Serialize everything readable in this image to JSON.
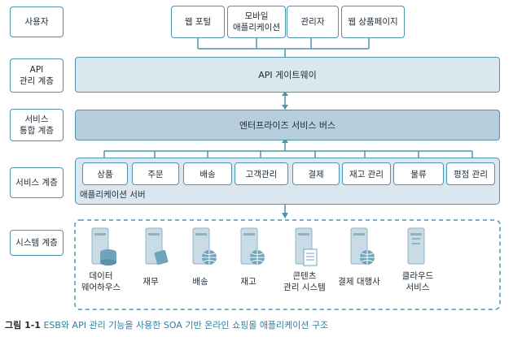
{
  "layers": {
    "user": "사용자",
    "api": "API\n관리 계층",
    "integration": "서비스\n통합 계층",
    "service": "서비스 계층",
    "system": "시스템 계층"
  },
  "clients": [
    "웹 포털",
    "모바일\n애플리케이션",
    "관리자",
    "웹 상품페이지"
  ],
  "api_gateway": "API 게이트웨이",
  "esb": "엔터프라이즈 서비스 버스",
  "services": [
    "상품",
    "주문",
    "배송",
    "고객관리",
    "결제",
    "재고 관리",
    "물류",
    "평점 관리"
  ],
  "app_server": "애플리케이션 서버",
  "systems": [
    "데이터\n웨어하우스",
    "재무",
    "배송",
    "재고",
    "콘텐츠\n관리 시스템",
    "결제 대행사",
    "클라우드\n서비스"
  ],
  "caption": {
    "number": "그림 1-1",
    "text": "ESB와 API 관리 기능을 사용한 SOA 기반 온라인 쇼핑몰 애플리케이션 구조"
  },
  "colors": {
    "accent": "#4f93ad",
    "fill": "#dbe7ef",
    "fill_dark": "#b7cfdd",
    "caption": "#2e7fa3"
  }
}
